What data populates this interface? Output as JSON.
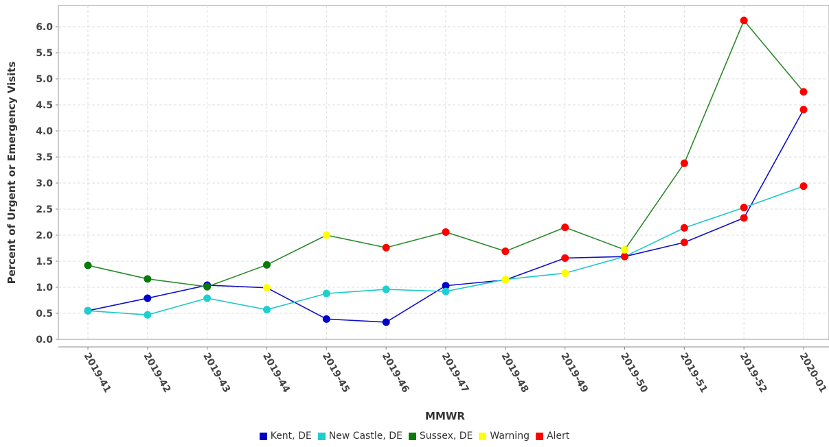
{
  "chart_data": {
    "type": "line",
    "xlabel": "MMWR",
    "ylabel": "Percent of Urgent or Emergency Visits",
    "ylim": [
      0.0,
      6.3
    ],
    "yticks": [
      "0.0",
      "0.5",
      "1.0",
      "1.5",
      "2.0",
      "2.5",
      "3.0",
      "3.5",
      "4.0",
      "4.5",
      "5.0",
      "5.5",
      "6.0"
    ],
    "grid": true,
    "legend_position": "bottom",
    "categories": [
      "2019-41",
      "2019-42",
      "2019-43",
      "2019-44",
      "2019-45",
      "2019-46",
      "2019-47",
      "2019-48",
      "2019-49",
      "2019-50",
      "2019-51",
      "2019-52",
      "2020-01"
    ],
    "series": [
      {
        "name": "Kent, DE",
        "color": "#1010c8",
        "values": [
          0.55,
          0.79,
          1.04,
          0.99,
          0.39,
          0.33,
          1.03,
          1.14,
          1.56,
          1.59,
          1.86,
          2.33,
          4.41
        ],
        "markers": [
          "normal",
          "normal",
          "normal",
          "warning",
          "normal",
          "normal",
          "normal",
          "warning",
          "alert",
          "alert",
          "alert",
          "alert",
          "alert"
        ]
      },
      {
        "name": "New Castle, DE",
        "color": "#1ec8c8",
        "values": [
          0.55,
          0.47,
          0.79,
          0.57,
          0.88,
          0.96,
          0.92,
          1.15,
          1.27,
          1.59,
          2.14,
          2.53,
          2.94
        ],
        "markers": [
          "normal",
          "normal",
          "normal",
          "normal",
          "normal",
          "normal",
          "normal",
          "warning",
          "warning",
          "alert",
          "alert",
          "alert",
          "alert"
        ]
      },
      {
        "name": "Sussex, DE",
        "color": "#2a8a2a",
        "values": [
          1.42,
          1.16,
          1.01,
          1.43,
          2.0,
          1.76,
          2.06,
          1.69,
          2.15,
          1.72,
          3.38,
          6.12,
          4.75
        ],
        "markers": [
          "normal",
          "normal",
          "normal",
          "normal",
          "warning",
          "alert",
          "alert",
          "alert",
          "alert",
          "warning",
          "alert",
          "alert",
          "alert"
        ]
      }
    ],
    "marker_legend": [
      {
        "name": "Warning",
        "color": "#ffff00"
      },
      {
        "name": "Alert",
        "color": "#ff0000"
      }
    ],
    "marker_series_colors": {
      "Kent, DE": "#0000c8",
      "New Castle, DE": "#1ecfcf",
      "Sussex, DE": "#0a7a0a"
    }
  }
}
